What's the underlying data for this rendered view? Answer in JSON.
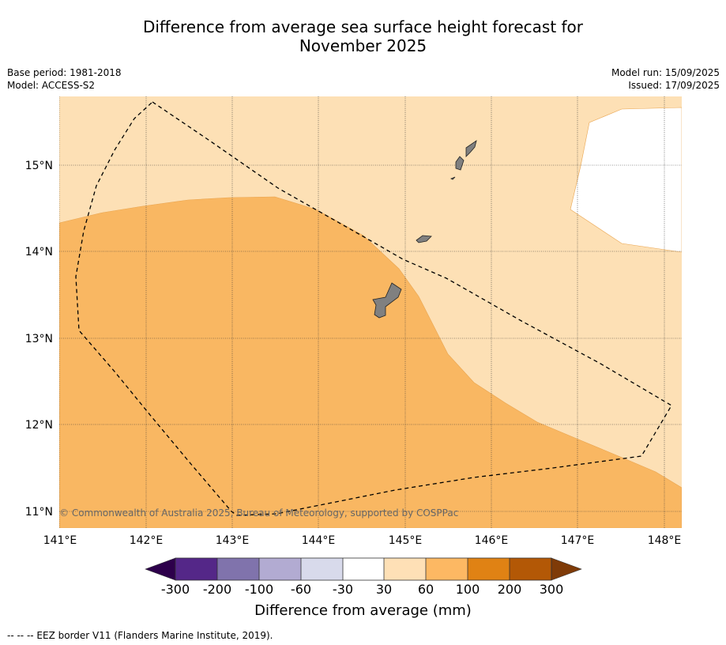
{
  "title_line1": "Difference from average sea surface height forecast for",
  "title_line2": "November 2025",
  "meta_left": {
    "base_period": "Base period: 1981-2018",
    "model": "Model: ACCESS-S2"
  },
  "meta_right": {
    "model_run": "Model run: 15/09/2025",
    "issued": "Issued: 17/09/2025"
  },
  "map": {
    "lon_labels": [
      "141°E",
      "142°E",
      "143°E",
      "144°E",
      "145°E",
      "146°E",
      "147°E",
      "148°E"
    ],
    "lat_labels": [
      "15°N",
      "14°N",
      "13°N",
      "12°N",
      "11°N"
    ],
    "copyright": "© Commonwealth of Australia 2025, Bureau of Meteorology, supported by COSPPac",
    "colors": {
      "band_30_60": "#fde0b5",
      "band_60_100": "#f9b762",
      "band_neutral": "#ffffff",
      "land": "#808080"
    }
  },
  "colorbar": {
    "ticks": [
      "-300",
      "-200",
      "-100",
      "-60",
      "-30",
      "30",
      "60",
      "100",
      "200",
      "300"
    ],
    "colors": [
      "#2d004b",
      "#542788",
      "#8073ac",
      "#b2abd2",
      "#d8daeb",
      "#ffffff",
      "#fee0b6",
      "#fdb863",
      "#e08214",
      "#b35806",
      "#7f3b08"
    ],
    "label": "Difference from average (mm)"
  },
  "footer": "--  --  -- EEZ border V11 (Flanders Marine Institute, 2019)."
}
